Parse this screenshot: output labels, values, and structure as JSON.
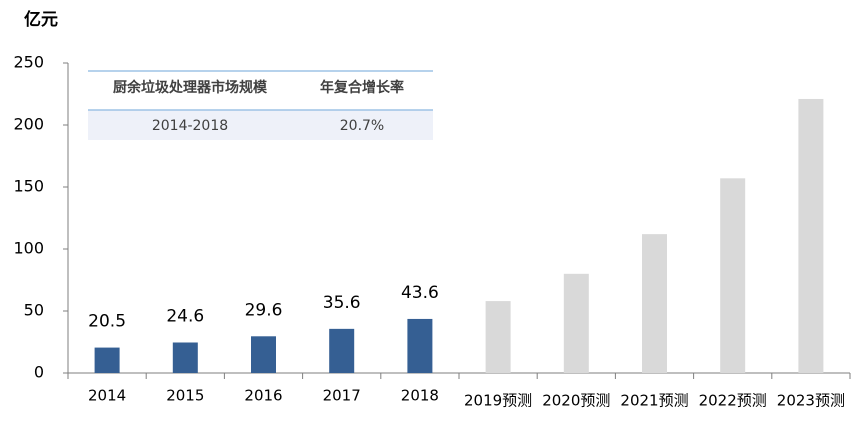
{
  "chart_data": {
    "type": "bar",
    "y_axis_label": "亿元",
    "categories": [
      "2014",
      "2015",
      "2016",
      "2017",
      "2018",
      "2019预测",
      "2020预测",
      "2021预测",
      "2022预测",
      "2023预测"
    ],
    "values": [
      20.5,
      24.6,
      29.6,
      35.6,
      43.6,
      58,
      80,
      112,
      157,
      221
    ],
    "value_labels": [
      "20.5",
      "24.6",
      "29.6",
      "35.6",
      "43.6",
      null,
      null,
      null,
      null,
      null
    ],
    "colors": [
      "#355f93",
      "#355f93",
      "#355f93",
      "#355f93",
      "#355f93",
      "#d9d9d9",
      "#d9d9d9",
      "#d9d9d9",
      "#d9d9d9",
      "#d9d9d9"
    ],
    "ylim": [
      0,
      250
    ],
    "yticks": [
      0,
      50,
      100,
      150,
      200,
      250
    ],
    "grid": false,
    "table": {
      "header": [
        "厨余垃圾处理器市场规模",
        "年复合增长率"
      ],
      "rows": [
        [
          "2014-2018",
          "20.7%"
        ]
      ]
    }
  }
}
